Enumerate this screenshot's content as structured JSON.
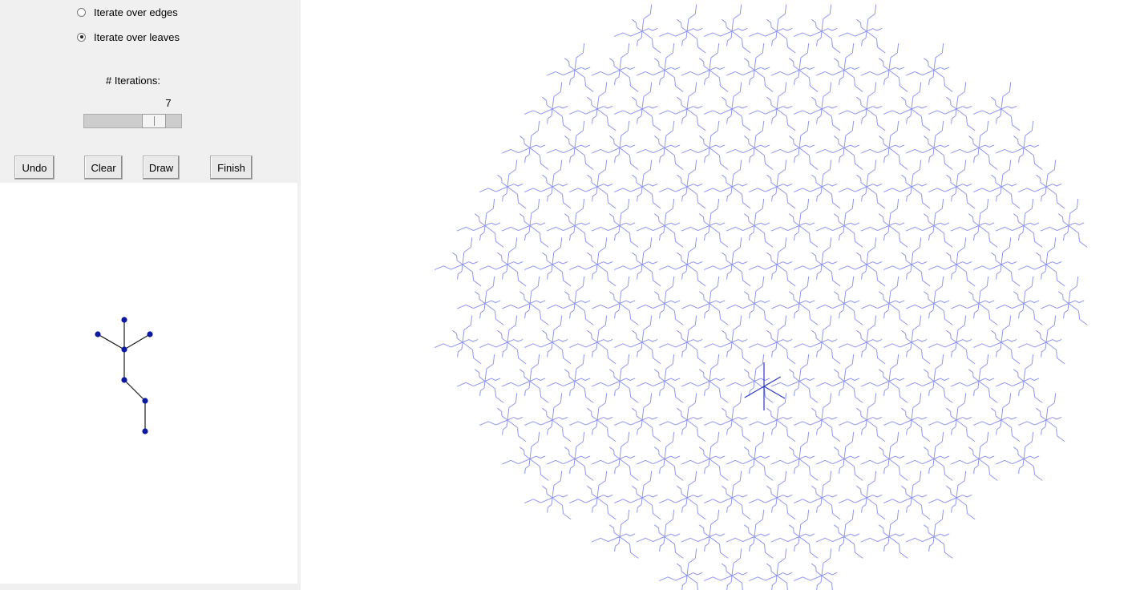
{
  "options": {
    "iterate_edges_label": "Iterate over edges",
    "iterate_leaves_label": "Iterate over leaves",
    "selected": "iterate_leaves"
  },
  "iterations": {
    "label": "# Iterations:",
    "value": 7,
    "display_value": "7",
    "min": 1,
    "max": 8
  },
  "toolbar": {
    "undo_label": "Undo",
    "clear_label": "Clear",
    "draw_label": "Draw",
    "finish_label": "Finish"
  },
  "colors": {
    "tree_edge": "#1a1a1a",
    "tree_node": "#0b1a9e",
    "fractal_line": "#8f95f0",
    "fractal_center": "#2a36c8",
    "panel_bg": "#f0f0f0",
    "canvas_bg": "#ffffff"
  },
  "icons": {
    "radio": "radio-circle-icon",
    "slider": "slider-thumb-icon"
  }
}
